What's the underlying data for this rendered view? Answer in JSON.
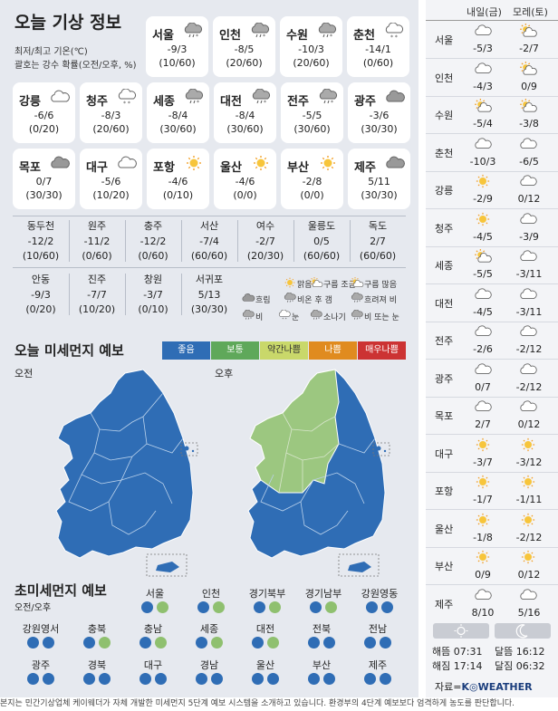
{
  "title": "오늘 기상 정보",
  "note1": "최저/최고 기온(℃)",
  "note2": "괄호는 강수 확률(오전/오후, %)",
  "cards": [
    {
      "name": "서울",
      "icon": "cloud-rain-snow-icon",
      "temp": "-9/3",
      "precip": "(10/60)"
    },
    {
      "name": "인천",
      "icon": "cloud-rain-snow-icon",
      "temp": "-8/5",
      "precip": "(20/60)"
    },
    {
      "name": "수원",
      "icon": "cloud-rain-snow-icon",
      "temp": "-10/3",
      "precip": "(20/60)"
    },
    {
      "name": "춘천",
      "icon": "cloud-snow-icon",
      "temp": "-14/1",
      "precip": "(0/60)"
    },
    {
      "name": "강릉",
      "icon": "cloud-icon",
      "temp": "-6/6",
      "precip": "(0/20)"
    },
    {
      "name": "청주",
      "icon": "cloud-snow-icon",
      "temp": "-8/3",
      "precip": "(20/60)"
    },
    {
      "name": "세종",
      "icon": "cloud-rain-snow-icon",
      "temp": "-8/4",
      "precip": "(30/60)"
    },
    {
      "name": "대전",
      "icon": "cloud-rain-snow-icon",
      "temp": "-8/4",
      "precip": "(30/60)"
    },
    {
      "name": "전주",
      "icon": "cloud-rain-snow-icon",
      "temp": "-5/5",
      "precip": "(30/60)"
    },
    {
      "name": "광주",
      "icon": "cloud-dark-icon",
      "temp": "-3/6",
      "precip": "(30/30)"
    },
    {
      "name": "목포",
      "icon": "cloud-dark-icon",
      "temp": "0/7",
      "precip": "(30/30)"
    },
    {
      "name": "대구",
      "icon": "cloud-icon",
      "temp": "-5/6",
      "precip": "(10/20)"
    },
    {
      "name": "포항",
      "icon": "sun-icon",
      "temp": "-4/6",
      "precip": "(0/10)"
    },
    {
      "name": "울산",
      "icon": "sun-icon",
      "temp": "-4/6",
      "precip": "(0/0)"
    },
    {
      "name": "부산",
      "icon": "sun-icon",
      "temp": "-2/8",
      "precip": "(0/0)"
    },
    {
      "name": "제주",
      "icon": "cloud-dark-icon",
      "temp": "5/11",
      "precip": "(30/30)"
    }
  ],
  "cities2a": [
    {
      "name": "동두천",
      "temp": "-12/2",
      "precip": "(10/60)"
    },
    {
      "name": "원주",
      "temp": "-11/2",
      "precip": "(0/60)"
    },
    {
      "name": "충주",
      "temp": "-12/2",
      "precip": "(0/60)"
    },
    {
      "name": "서산",
      "temp": "-7/4",
      "precip": "(60/60)"
    },
    {
      "name": "여수",
      "temp": "-2/7",
      "precip": "(20/30)"
    },
    {
      "name": "울릉도",
      "temp": "0/5",
      "precip": "(60/60)"
    },
    {
      "name": "독도",
      "temp": "2/7",
      "precip": "(60/60)"
    }
  ],
  "cities2b": [
    {
      "name": "안동",
      "temp": "-9/3",
      "precip": "(0/20)"
    },
    {
      "name": "진주",
      "temp": "-7/7",
      "precip": "(10/20)"
    },
    {
      "name": "창원",
      "temp": "-3/7",
      "precip": "(0/10)"
    },
    {
      "name": "서귀포",
      "temp": "5/13",
      "precip": "(30/30)"
    }
  ],
  "legend": [
    "맑음",
    "구름 조금",
    "구름 많음",
    "흐림",
    "비온 후 갬",
    "흐려져 비",
    "비",
    "눈",
    "소나기",
    "비 또는 눈"
  ],
  "dust_title": "오늘 미세먼지 예보",
  "grades": [
    {
      "label": "좋음",
      "color": "#2f6db5"
    },
    {
      "label": "보통",
      "color": "#5fa85a"
    },
    {
      "label": "약간나쁨",
      "color": "#c9d86a"
    },
    {
      "label": "나쁨",
      "color": "#e08b1f"
    },
    {
      "label": "매우나쁨",
      "color": "#cc3333"
    }
  ],
  "am": "오전",
  "pm": "오후",
  "fine_title": "초미세먼지 예보",
  "fine_sub": "오전/오후",
  "fine": [
    {
      "name": "서울",
      "am": "blue",
      "pm": "green"
    },
    {
      "name": "인천",
      "am": "blue",
      "pm": "green"
    },
    {
      "name": "경기북부",
      "am": "blue",
      "pm": "green"
    },
    {
      "name": "경기남부",
      "am": "blue",
      "pm": "green"
    },
    {
      "name": "강원영동",
      "am": "blue",
      "pm": "blue"
    },
    {
      "name": "강원영서",
      "am": "blue",
      "pm": "blue"
    },
    {
      "name": "충북",
      "am": "blue",
      "pm": "green"
    },
    {
      "name": "충남",
      "am": "blue",
      "pm": "green"
    },
    {
      "name": "세종",
      "am": "blue",
      "pm": "green"
    },
    {
      "name": "대전",
      "am": "blue",
      "pm": "green"
    },
    {
      "name": "전북",
      "am": "blue",
      "pm": "blue"
    },
    {
      "name": "전남",
      "am": "blue",
      "pm": "blue"
    },
    {
      "name": "광주",
      "am": "blue",
      "pm": "blue"
    },
    {
      "name": "경북",
      "am": "blue",
      "pm": "blue"
    },
    {
      "name": "대구",
      "am": "blue",
      "pm": "blue"
    },
    {
      "name": "경남",
      "am": "blue",
      "pm": "blue"
    },
    {
      "name": "울산",
      "am": "blue",
      "pm": "blue"
    },
    {
      "name": "부산",
      "am": "blue",
      "pm": "blue"
    },
    {
      "name": "제주",
      "am": "blue",
      "pm": "blue"
    }
  ],
  "forecast_head": {
    "d1": "내일(금)",
    "d2": "모레(토)"
  },
  "forecast": [
    {
      "city": "서울",
      "i1": "cloud-icon",
      "t1": "-5/3",
      "i2": "sun-cloud-icon",
      "t2": "-2/7"
    },
    {
      "city": "인천",
      "i1": "cloud-icon",
      "t1": "-4/3",
      "i2": "sun-cloud-icon",
      "t2": "0/9"
    },
    {
      "city": "수원",
      "i1": "sun-cloud-icon",
      "t1": "-5/4",
      "i2": "sun-cloud-icon",
      "t2": "-3/8"
    },
    {
      "city": "춘천",
      "i1": "cloud-icon",
      "t1": "-10/3",
      "i2": "cloud-icon",
      "t2": "-6/5"
    },
    {
      "city": "강릉",
      "i1": "sun-icon",
      "t1": "-2/9",
      "i2": "cloud-icon",
      "t2": "0/12"
    },
    {
      "city": "청주",
      "i1": "sun-icon",
      "t1": "-4/5",
      "i2": "cloud-icon",
      "t2": "-3/9"
    },
    {
      "city": "세종",
      "i1": "sun-cloud-icon",
      "t1": "-5/5",
      "i2": "cloud-icon",
      "t2": "-3/11"
    },
    {
      "city": "대전",
      "i1": "cloud-icon",
      "t1": "-4/5",
      "i2": "cloud-icon",
      "t2": "-3/11"
    },
    {
      "city": "전주",
      "i1": "cloud-icon",
      "t1": "-2/6",
      "i2": "cloud-icon",
      "t2": "-2/12"
    },
    {
      "city": "광주",
      "i1": "cloud-icon",
      "t1": "0/7",
      "i2": "cloud-icon",
      "t2": "-2/12"
    },
    {
      "city": "목포",
      "i1": "cloud-icon",
      "t1": "2/7",
      "i2": "cloud-icon",
      "t2": "0/12"
    },
    {
      "city": "대구",
      "i1": "sun-icon",
      "t1": "-3/7",
      "i2": "sun-icon",
      "t2": "-3/12"
    },
    {
      "city": "포항",
      "i1": "sun-icon",
      "t1": "-1/7",
      "i2": "sun-icon",
      "t2": "-1/11"
    },
    {
      "city": "울산",
      "i1": "sun-icon",
      "t1": "-1/8",
      "i2": "sun-icon",
      "t2": "-2/12"
    },
    {
      "city": "부산",
      "i1": "sun-icon",
      "t1": "0/9",
      "i2": "sun-icon",
      "t2": "0/12"
    },
    {
      "city": "제주",
      "i1": "cloud-icon",
      "t1": "8/10",
      "i2": "cloud-icon",
      "t2": "5/16"
    }
  ],
  "sun": {
    "rise": "해뜸 07:31",
    "set": "해짐 17:14"
  },
  "moon": {
    "rise": "달뜸 16:12",
    "set": "달짐 06:32"
  },
  "source_label": "자료=",
  "source_brand": "K◎WEATHER",
  "footer": "본지는 민간기상업체 케이웨더가 자체 개발한 미세먼지 5단계 예보 시스템을 소개하고 있습니다. 환경부의 4단계 예보보다 엄격하게 농도를 판단합니다."
}
